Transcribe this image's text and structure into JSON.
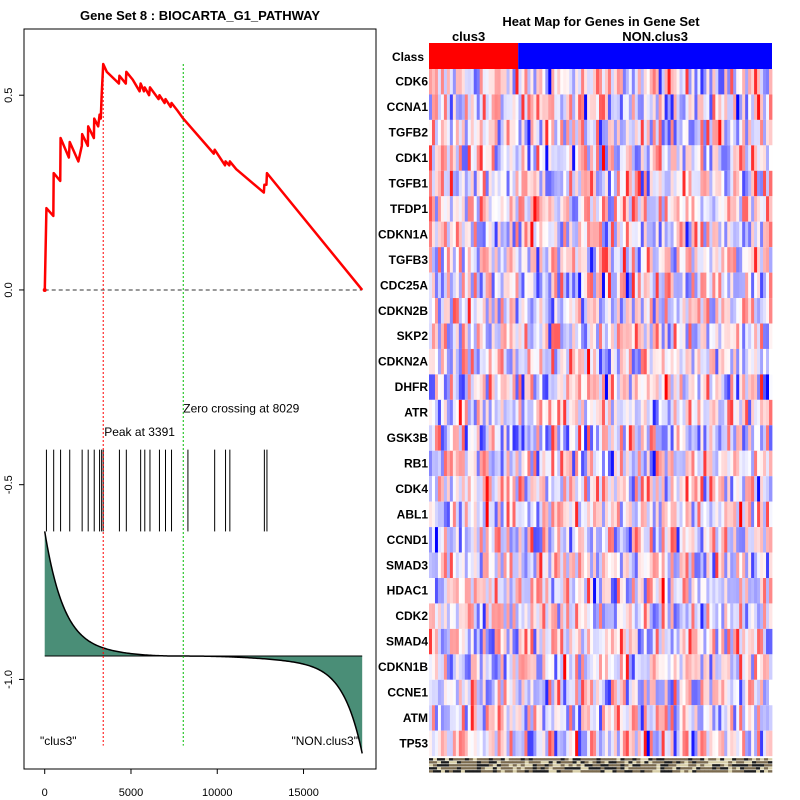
{
  "chart_data": [
    {
      "type": "line",
      "title": "Gene Set  8 : BIOCARTA_G1_PATHWAY",
      "xlabel": "",
      "ylabel": "",
      "xlim": [
        -1200,
        19200
      ],
      "ylim": [
        -1.23,
        0.67
      ],
      "x_ticks": [
        0,
        5000,
        10000,
        15000
      ],
      "x_tick_labels": [
        "0",
        "5000",
        "10000",
        "15000"
      ],
      "y_ticks": [
        0.5,
        0.0,
        -0.5,
        -1.0
      ],
      "y_tick_labels": [
        "0.5",
        "0.0",
        "-0.5",
        "-1.0"
      ],
      "n_genes": 18400,
      "series": [
        {
          "name": "Running enrichment score",
          "color": "#ff0000",
          "x": [
            0,
            5,
            100,
            500,
            520,
            900,
            920,
            1400,
            1450,
            1950,
            2150,
            2170,
            2500,
            2520,
            2850,
            2870,
            3100,
            3180,
            3250,
            3300,
            3391,
            3600,
            4300,
            4330,
            4700,
            4730,
            5100,
            5500,
            5560,
            5750,
            5800,
            6050,
            6100,
            6600,
            6650,
            6950,
            7000,
            7300,
            7350,
            7700,
            8029,
            9800,
            9850,
            10450,
            10480,
            10700,
            10730,
            11100,
            12700,
            12730,
            12850,
            12880,
            18400
          ],
          "y": [
            0.0,
            0.0,
            0.21,
            0.19,
            0.3,
            0.28,
            0.39,
            0.34,
            0.38,
            0.33,
            0.37,
            0.4,
            0.37,
            0.42,
            0.39,
            0.44,
            0.42,
            0.45,
            0.44,
            0.5,
            0.58,
            0.56,
            0.53,
            0.55,
            0.53,
            0.56,
            0.54,
            0.51,
            0.53,
            0.51,
            0.52,
            0.5,
            0.52,
            0.49,
            0.5,
            0.48,
            0.49,
            0.47,
            0.48,
            0.46,
            0.44,
            0.35,
            0.36,
            0.32,
            0.33,
            0.32,
            0.33,
            0.31,
            0.25,
            0.27,
            0.27,
            0.3,
            0.0
          ]
        }
      ],
      "baseline": {
        "value": 0.0,
        "style": "dashed"
      },
      "gene_hits": [
        3391,
        100,
        520,
        920,
        1450,
        2170,
        2520,
        2870,
        3180,
        3300,
        4330,
        4730,
        5560,
        5800,
        6100,
        6650,
        7000,
        7350,
        8300,
        9850,
        10480,
        10730,
        12730,
        12880
      ],
      "hits_band": [
        -0.41,
        -0.62
      ],
      "ranked_metric": {
        "zero_level": -0.94,
        "top": -0.62,
        "bottom": -1.19,
        "fill_color": "#4a8e77"
      },
      "peak": {
        "x": 3391,
        "label": "Peak at 3391",
        "color": "#ff0000"
      },
      "zero_crossing": {
        "x": 8029,
        "label": "Zero crossing at 8029",
        "color": "#00bb00"
      },
      "annotations": [
        {
          "text": "\"clus3\"",
          "position": "bottom-left"
        },
        {
          "text": "\"NON.clus3\"",
          "position": "bottom-right"
        }
      ]
    },
    {
      "type": "heatmap",
      "title": "Heat Map for Genes in Gene Set",
      "class_row_label": "Class",
      "groups": [
        {
          "name": "clus3",
          "color": "#ff0000",
          "fraction": 0.26
        },
        {
          "name": "NON.clus3",
          "color": "#0000ff",
          "fraction": 0.74
        }
      ],
      "genes": [
        "CDK6",
        "CCNA1",
        "TGFB2",
        "CDK1",
        "TGFB1",
        "TFDP1",
        "CDKN1A",
        "TGFB3",
        "CDC25A",
        "CDKN2B",
        "SKP2",
        "CDKN2A",
        "DHFR",
        "ATR",
        "GSK3B",
        "RB1",
        "CDK4",
        "ABL1",
        "CCND1",
        "SMAD3",
        "HDAC1",
        "CDK2",
        "SMAD4",
        "CDKN1B",
        "CCNE1",
        "ATM",
        "TP53"
      ],
      "color_scale": [
        "#0000ff",
        "#ffffff",
        "#ff0000"
      ],
      "value_range": [
        -3,
        3
      ]
    }
  ]
}
